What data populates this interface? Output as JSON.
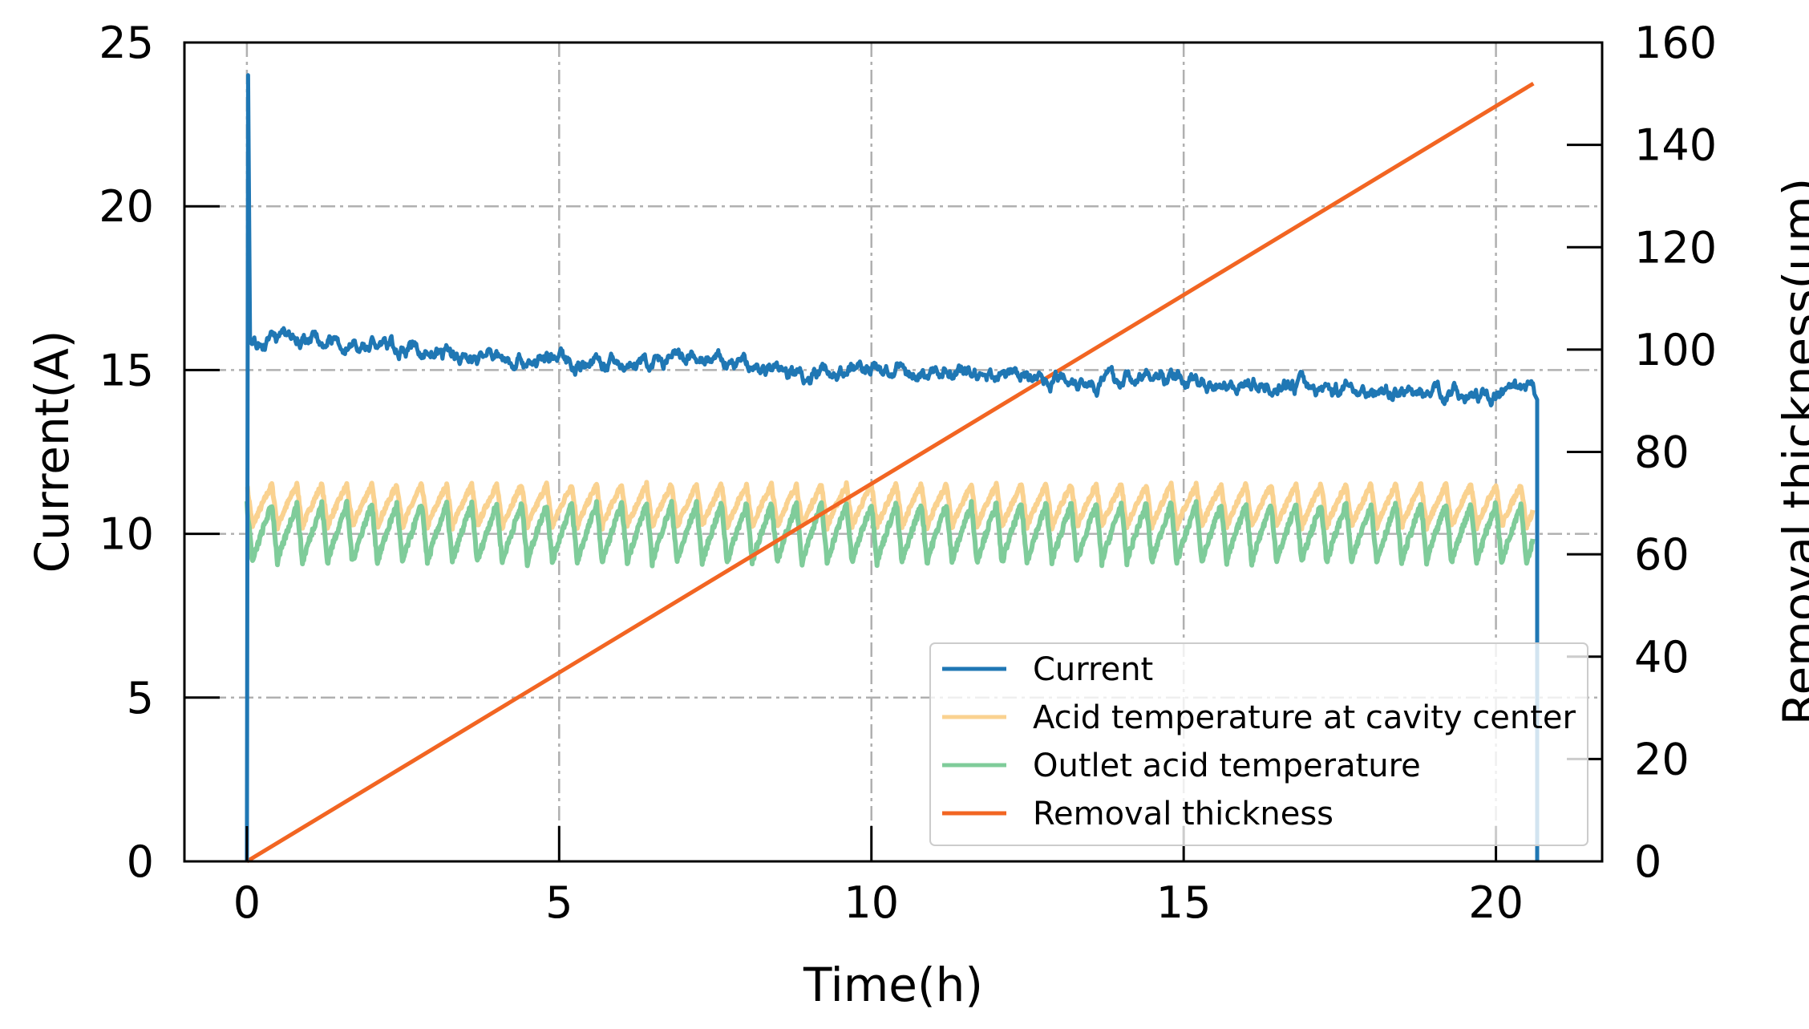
{
  "chart_data": {
    "type": "line",
    "title": "",
    "xlabel": "Time(h)",
    "ylabel": "Current(A)",
    "y2label": "Removal thickness(μm)",
    "xlim": [
      -1,
      21.7
    ],
    "ylim": [
      0,
      25
    ],
    "y2lim": [
      0,
      160
    ],
    "xticks": [
      "0",
      "5",
      "10",
      "15",
      "20"
    ],
    "yticks": [
      "0",
      "5",
      "10",
      "15",
      "20",
      "25"
    ],
    "y2ticks": [
      "0",
      "20",
      "40",
      "60",
      "80",
      "100",
      "120",
      "140",
      "160"
    ],
    "grid": true,
    "legend_position": "lower-right",
    "series": [
      {
        "name": "Current",
        "axis": "left",
        "color": "#1f77b4",
        "x": [
          0,
          0.02,
          0.05,
          0.1,
          0.3,
          1,
          2,
          3,
          4,
          5,
          6,
          7,
          8,
          9,
          10,
          11,
          12,
          13,
          14,
          15,
          16,
          17,
          18,
          19,
          20,
          20.6,
          20.65,
          20.66
        ],
        "y": [
          0,
          24,
          16,
          15.8,
          15.9,
          15.8,
          15.7,
          15.5,
          15.4,
          15.3,
          15.2,
          15.2,
          15.1,
          15.0,
          15.0,
          14.9,
          14.9,
          14.8,
          14.7,
          14.7,
          14.6,
          14.5,
          14.4,
          14.3,
          14.2,
          14.2,
          14.1,
          0
        ]
      },
      {
        "name": "Acid temperature at cavity center",
        "axis": "left",
        "color": "#fad290",
        "period_h": 0.4,
        "min": 10.2,
        "max": 11.5,
        "x_range": [
          0,
          20.6
        ]
      },
      {
        "name": "Outlet acid temperature",
        "axis": "left",
        "color": "#7fcc9a",
        "period_h": 0.4,
        "min": 9.1,
        "max": 10.9,
        "x_range": [
          0,
          20.6
        ]
      },
      {
        "name": "Removal thickness",
        "axis": "right",
        "color": "#f26522",
        "x": [
          0,
          20.6
        ],
        "y": [
          0,
          152
        ]
      }
    ]
  }
}
